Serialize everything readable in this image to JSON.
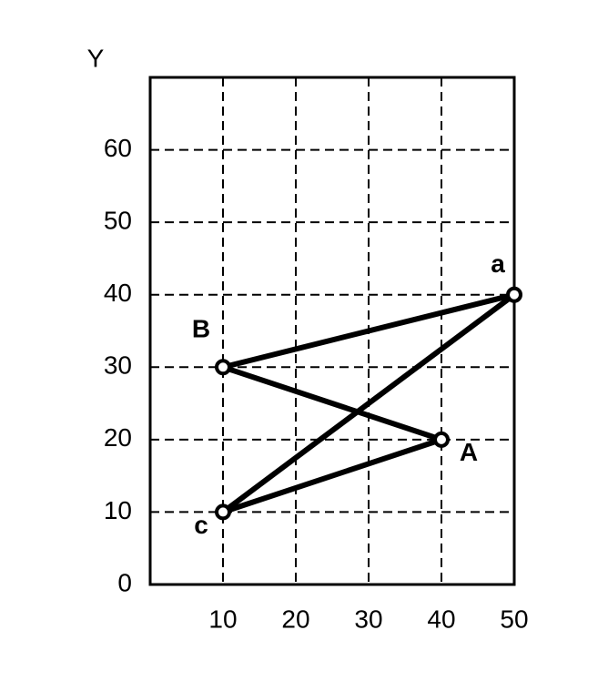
{
  "chart_data": {
    "type": "line",
    "y_label": "Y",
    "x": [
      50,
      10,
      40,
      10
    ],
    "y": [
      40,
      30,
      20,
      10
    ],
    "point_labels": [
      "a",
      "B",
      "A",
      "c"
    ],
    "closed": true,
    "color": "#000000",
    "xlim": [
      0,
      50
    ],
    "xticks": [
      10,
      20,
      30,
      40,
      50
    ],
    "ylim": [
      0,
      70
    ],
    "yticks": [
      0,
      10,
      20,
      30,
      40,
      50,
      60
    ],
    "grid": true
  }
}
